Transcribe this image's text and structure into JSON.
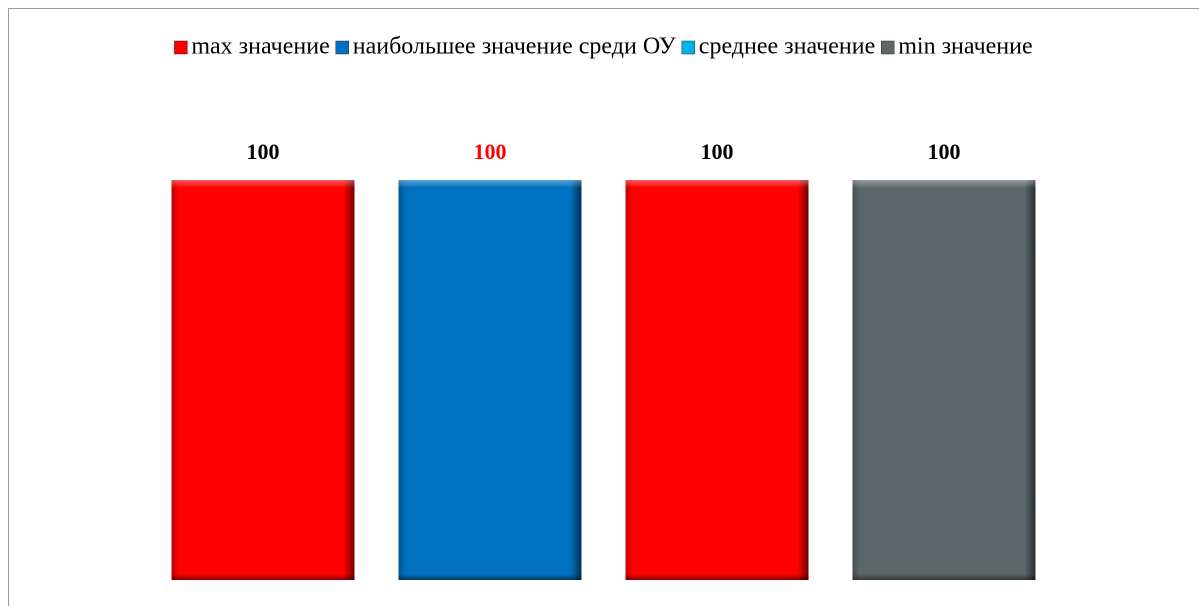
{
  "chart_data": {
    "type": "bar",
    "series": [
      {
        "name": "max значение",
        "color": "#ff0000",
        "values": [
          100
        ]
      },
      {
        "name": "наибольшее значение среди ОУ",
        "color": "#0070c0",
        "values": [
          100
        ],
        "label_color": "#ff0000"
      },
      {
        "name": "среднее значение",
        "color": "#00b0f0",
        "values": [
          100
        ],
        "bar_color": "#ff0000"
      },
      {
        "name": "min значение",
        "color": "#5b6769",
        "values": [
          100
        ]
      }
    ],
    "ylim": [
      0,
      100
    ],
    "legend": "top"
  }
}
